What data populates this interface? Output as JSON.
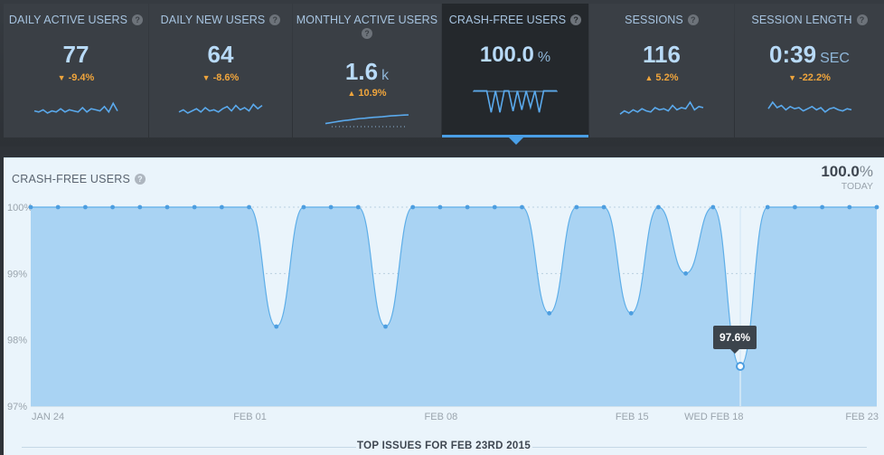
{
  "metrics": [
    {
      "label": "DAILY ACTIVE USERS",
      "value": "77",
      "unit": "",
      "change": "-9.4%",
      "direction": "down",
      "spark": [
        0.35,
        0.3,
        0.4,
        0.25,
        0.35,
        0.3,
        0.45,
        0.3,
        0.4,
        0.35,
        0.3,
        0.5,
        0.3,
        0.45,
        0.4,
        0.35,
        0.55,
        0.3,
        0.7,
        0.35
      ]
    },
    {
      "label": "DAILY NEW USERS",
      "value": "64",
      "unit": "",
      "change": "-8.6%",
      "direction": "down",
      "spark": [
        0.3,
        0.4,
        0.25,
        0.35,
        0.45,
        0.3,
        0.5,
        0.35,
        0.4,
        0.3,
        0.45,
        0.55,
        0.35,
        0.6,
        0.4,
        0.5,
        0.35,
        0.65,
        0.45,
        0.6
      ]
    },
    {
      "label": "MONTHLY ACTIVE USERS",
      "value": "1.6",
      "unit": "k",
      "change": "10.9%",
      "direction": "up",
      "spark": [
        0.15,
        0.2,
        0.25,
        0.3,
        0.35,
        0.38,
        0.42,
        0.46,
        0.5,
        0.52,
        0.55,
        0.58,
        0.6,
        0.62,
        0.65,
        0.68,
        0.7,
        0.72,
        0.74,
        0.75
      ]
    },
    {
      "label": "CRASH-FREE USERS",
      "value": "100.0",
      "unit": "%",
      "change": "",
      "direction": "",
      "spark": [
        0.95,
        0.95,
        0.95,
        0.95,
        0.1,
        0.95,
        0.1,
        0.95,
        0.95,
        0.15,
        0.95,
        0.2,
        0.95,
        0.3,
        0.95,
        0.1,
        0.95,
        0.95,
        0.95,
        0.95
      ]
    },
    {
      "label": "SESSIONS",
      "value": "116",
      "unit": "",
      "change": "5.2%",
      "direction": "up",
      "spark": [
        0.2,
        0.35,
        0.25,
        0.4,
        0.3,
        0.45,
        0.35,
        0.3,
        0.5,
        0.4,
        0.45,
        0.35,
        0.6,
        0.4,
        0.5,
        0.45,
        0.75,
        0.4,
        0.55,
        0.5
      ]
    },
    {
      "label": "SESSION LENGTH",
      "value": "0:39",
      "unit": "SEC",
      "change": "-22.2%",
      "direction": "down",
      "spark": [
        0.45,
        0.75,
        0.5,
        0.6,
        0.4,
        0.55,
        0.45,
        0.5,
        0.35,
        0.45,
        0.55,
        0.4,
        0.5,
        0.3,
        0.45,
        0.5,
        0.4,
        0.35,
        0.45,
        0.4
      ]
    }
  ],
  "panel": {
    "title": "CRASH-FREE USERS",
    "today_value": "100.0",
    "today_unit": "%",
    "today_label": "TODAY"
  },
  "tooltip": {
    "value": "97.6%"
  },
  "section_title": "TOP ISSUES FOR FEB 23RD 2015",
  "chart_data": {
    "type": "area",
    "series": [
      {
        "values": [
          100,
          100,
          100,
          100,
          100,
          100,
          100,
          100,
          100,
          98.2,
          100,
          100,
          100,
          98.2,
          100,
          100,
          100,
          100,
          100,
          98.4,
          100,
          100,
          98.4,
          100,
          99,
          100,
          97.6,
          100,
          100,
          100,
          100,
          100
        ]
      }
    ],
    "x_labels": [
      "JAN 24",
      "FEB 01",
      "FEB 08",
      "FEB 15",
      "WED FEB 18",
      "FEB 23"
    ],
    "x_label_index": [
      0,
      8,
      15,
      22,
      25,
      29
    ],
    "y_ticks": [
      "100%",
      "99%",
      "98%",
      "97%"
    ],
    "ylim": [
      97,
      100
    ],
    "highlight_index": 26,
    "colors": {
      "fill": "#a9d3f3",
      "line": "#5eaee8",
      "point": "#4d9ee0"
    }
  }
}
